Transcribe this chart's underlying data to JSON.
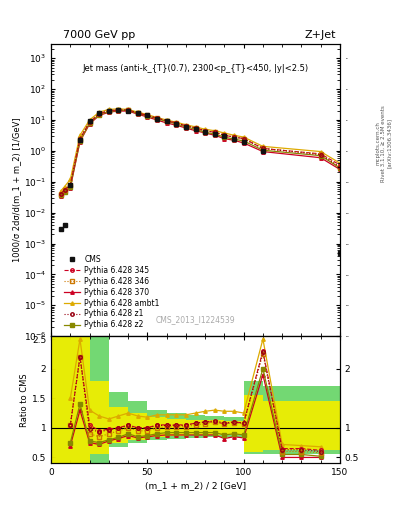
{
  "title_left": "7000 GeV pp",
  "title_right": "Z+Jet",
  "annotation": "Jet mass (anti-k_{T}(0.7), 2300<p_{T}<450, |y|<2.5)",
  "cms_label": "CMS_2013_I1224539",
  "rivet_label": "Rivet 3.1.10, ≥ 2.5M events",
  "arxiv_label": "[arXiv:1306.3436]",
  "mcplots_label": "mcplots.cern.ch",
  "xlabel": "(m_1 + m_2) / 2 [GeV]",
  "ylabel_main": "1000/σ 2dσ/d(m_1 + m_2) [1/GeV]",
  "ylabel_ratio": "Ratio to CMS",
  "xlim": [
    0,
    150
  ],
  "ylim_main": [
    1e-06,
    3000
  ],
  "ylim_ratio": [
    0.4,
    2.55
  ],
  "cms_x": [
    5,
    7,
    10,
    15,
    20,
    25,
    30,
    35,
    40,
    45,
    50,
    55,
    60,
    65,
    70,
    75,
    80,
    85,
    90,
    95,
    100,
    110,
    150
  ],
  "cms_y": [
    0.003,
    0.004,
    0.08,
    2.2,
    9,
    17,
    20,
    21,
    20,
    17,
    14,
    11,
    9,
    7.5,
    6,
    5,
    4,
    3.5,
    3,
    2.5,
    2,
    1.0,
    0.0005
  ],
  "p345_x": [
    5,
    7,
    10,
    15,
    20,
    25,
    30,
    35,
    40,
    45,
    50,
    55,
    60,
    65,
    70,
    75,
    80,
    85,
    90,
    95,
    100,
    110,
    140,
    150
  ],
  "p345_y": [
    0.04,
    0.055,
    0.08,
    2.5,
    8.5,
    16,
    20,
    21,
    21,
    17,
    14,
    11.5,
    9.5,
    8,
    6.5,
    5.5,
    4.5,
    4,
    3.2,
    2.8,
    2.5,
    1.2,
    0.8,
    0.35
  ],
  "p346_x": [
    5,
    7,
    10,
    15,
    20,
    25,
    30,
    35,
    40,
    45,
    50,
    55,
    60,
    65,
    70,
    75,
    80,
    85,
    90,
    95,
    100,
    110,
    140,
    150
  ],
  "p346_y": [
    0.04,
    0.055,
    0.08,
    2.5,
    8.5,
    16,
    20,
    21,
    21,
    17,
    14,
    11.5,
    9.5,
    8,
    6.5,
    5.5,
    4.5,
    4,
    3.2,
    2.8,
    2.5,
    1.2,
    0.8,
    0.3
  ],
  "p370_x": [
    5,
    7,
    10,
    15,
    20,
    25,
    30,
    35,
    40,
    45,
    50,
    55,
    60,
    65,
    70,
    75,
    80,
    85,
    90,
    95,
    100,
    110,
    140,
    150
  ],
  "p370_y": [
    0.035,
    0.045,
    0.065,
    2.0,
    7.5,
    14,
    18,
    19.5,
    19.5,
    15.5,
    12.5,
    10,
    8,
    6.8,
    5.5,
    4.5,
    3.8,
    3.2,
    2.5,
    2.2,
    1.8,
    0.95,
    0.6,
    0.25
  ],
  "pambt1_x": [
    5,
    7,
    10,
    15,
    20,
    25,
    30,
    35,
    40,
    45,
    50,
    55,
    60,
    65,
    70,
    75,
    80,
    85,
    90,
    95,
    100,
    110,
    140,
    150
  ],
  "pambt1_y": [
    0.05,
    0.07,
    0.12,
    3.2,
    10,
    18,
    22,
    23,
    22,
    18,
    15,
    12,
    10,
    8.5,
    7,
    6,
    5,
    4.5,
    3.8,
    3.2,
    2.8,
    1.4,
    0.95,
    0.4
  ],
  "pz1_x": [
    5,
    7,
    10,
    15,
    20,
    25,
    30,
    35,
    40,
    45,
    50,
    55,
    60,
    65,
    70,
    75,
    80,
    85,
    90,
    95,
    100,
    110,
    140,
    150
  ],
  "pz1_y": [
    0.04,
    0.055,
    0.08,
    2.5,
    8.5,
    16,
    20,
    21,
    21,
    17,
    14,
    11.5,
    9.5,
    8,
    6.5,
    5.5,
    4.5,
    4,
    3.2,
    2.8,
    2.5,
    1.2,
    0.75,
    0.3
  ],
  "pz2_x": [
    5,
    7,
    10,
    15,
    20,
    25,
    30,
    35,
    40,
    45,
    50,
    55,
    60,
    65,
    70,
    75,
    80,
    85,
    90,
    95,
    100,
    110,
    140,
    150
  ],
  "pz2_y": [
    0.036,
    0.048,
    0.07,
    2.1,
    8.0,
    15,
    19,
    20.5,
    20.5,
    16.5,
    13.5,
    11,
    9,
    7.5,
    6,
    5,
    4,
    3.5,
    2.8,
    2.4,
    2.1,
    1.05,
    0.7,
    0.28
  ],
  "ratio_x": [
    10,
    15,
    20,
    25,
    30,
    35,
    40,
    45,
    50,
    55,
    60,
    65,
    70,
    75,
    80,
    85,
    90,
    95,
    100,
    110,
    120,
    130,
    140
  ],
  "ratio_p345": [
    1.05,
    2.2,
    1.05,
    0.95,
    0.98,
    1.0,
    1.05,
    1.0,
    1.0,
    1.05,
    1.05,
    1.05,
    1.05,
    1.08,
    1.1,
    1.1,
    1.07,
    1.1,
    1.08,
    2.3,
    0.65,
    0.65,
    0.62
  ],
  "ratio_p346": [
    1.05,
    2.2,
    0.9,
    0.85,
    0.9,
    0.95,
    1.0,
    0.95,
    0.95,
    1.0,
    1.02,
    1.02,
    1.02,
    1.05,
    1.07,
    1.1,
    1.07,
    1.08,
    1.07,
    2.25,
    0.6,
    0.6,
    0.58
  ],
  "ratio_p370": [
    0.7,
    1.3,
    0.75,
    0.72,
    0.78,
    0.82,
    0.87,
    0.83,
    0.85,
    0.87,
    0.88,
    0.88,
    0.88,
    0.88,
    0.88,
    0.88,
    0.82,
    0.85,
    0.83,
    1.9,
    0.5,
    0.5,
    0.5
  ],
  "ratio_pambt1": [
    1.5,
    2.5,
    1.3,
    1.2,
    1.15,
    1.2,
    1.25,
    1.2,
    1.18,
    1.22,
    1.22,
    1.22,
    1.22,
    1.25,
    1.28,
    1.3,
    1.28,
    1.28,
    1.25,
    2.5,
    0.72,
    0.7,
    0.68
  ],
  "ratio_pz1": [
    1.05,
    2.2,
    0.98,
    0.93,
    0.97,
    0.99,
    1.04,
    0.99,
    1.0,
    1.04,
    1.04,
    1.04,
    1.04,
    1.08,
    1.1,
    1.12,
    1.08,
    1.1,
    1.08,
    2.28,
    0.63,
    0.63,
    0.6
  ],
  "ratio_pz2": [
    0.75,
    1.4,
    0.78,
    0.75,
    0.8,
    0.84,
    0.9,
    0.85,
    0.87,
    0.9,
    0.92,
    0.92,
    0.92,
    0.92,
    0.92,
    0.92,
    0.88,
    0.9,
    0.88,
    2.0,
    0.55,
    0.55,
    0.52
  ],
  "band_x_edges": [
    0,
    10,
    20,
    30,
    40,
    50,
    60,
    70,
    80,
    90,
    100,
    110,
    130,
    150
  ],
  "band_green_lo": [
    0.4,
    0.4,
    0.4,
    0.68,
    0.75,
    0.8,
    0.82,
    0.83,
    0.84,
    0.84,
    0.55,
    0.55,
    0.55,
    0.4
  ],
  "band_green_hi": [
    2.55,
    2.55,
    2.55,
    1.6,
    1.45,
    1.3,
    1.25,
    1.22,
    1.2,
    1.18,
    1.8,
    1.7,
    1.7,
    2.55
  ],
  "band_yellow_lo": [
    0.4,
    0.4,
    0.55,
    0.75,
    0.8,
    0.85,
    0.87,
    0.88,
    0.88,
    0.88,
    0.6,
    0.62,
    0.62,
    0.4
  ],
  "band_yellow_hi": [
    2.55,
    2.55,
    1.8,
    1.35,
    1.25,
    1.18,
    1.15,
    1.14,
    1.13,
    1.12,
    1.55,
    1.45,
    1.45,
    2.55
  ],
  "colors": {
    "cms": "#111111",
    "p345": "#cc0022",
    "p346": "#cc7700",
    "p370": "#cc0022",
    "pambt1": "#ddaa00",
    "pz1": "#990011",
    "pz2": "#888800",
    "band_green": "#44cc44",
    "band_yellow": "#eeee00"
  }
}
